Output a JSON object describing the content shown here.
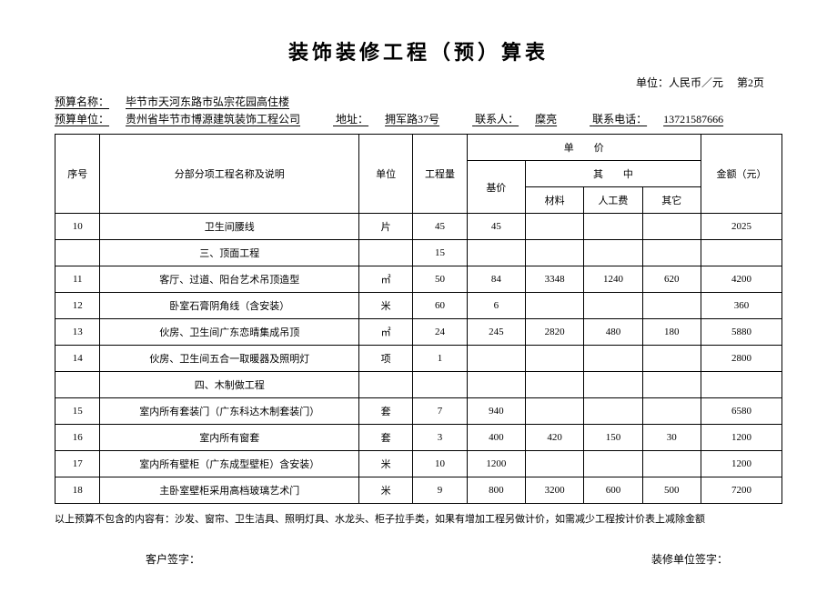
{
  "title": "装饰装修工程（预）算表",
  "unit_label": "单位：人民币／元",
  "page_label": "第2页",
  "budget_name_label": "预算名称：",
  "budget_name": "毕节市天河东路市弘宗花园高住楼",
  "budget_unit_label": "预算单位：",
  "budget_unit": "贵州省毕节市博源建筑装饰工程公司",
  "addr_label": "地址：",
  "addr": "拥军路37号",
  "contact_label": "联系人：",
  "contact": "糜亮",
  "phone_label": "联系电话：",
  "phone": "13721587666",
  "headers": {
    "seq": "序号",
    "name": "分部分项工程名称及说明",
    "unit": "单位",
    "qty": "工程量",
    "price": "单　　价",
    "base": "基价",
    "inner": "其　　中",
    "mat": "材料",
    "lab": "人工费",
    "oth": "其它",
    "amt": "金额（元）"
  },
  "rows": [
    {
      "seq": "10",
      "name": "卫生间腰线",
      "unit": "片",
      "qty": "45",
      "base": "45",
      "mat": "",
      "lab": "",
      "oth": "",
      "amt": "2025"
    },
    {
      "seq": "",
      "name": "三、顶面工程",
      "unit": "",
      "qty": "15",
      "base": "",
      "mat": "",
      "lab": "",
      "oth": "",
      "amt": ""
    },
    {
      "seq": "11",
      "name": "客厅、过道、阳台艺术吊顶造型",
      "unit": "㎡",
      "qty": "50",
      "base": "84",
      "mat": "3348",
      "lab": "1240",
      "oth": "620",
      "amt": "4200"
    },
    {
      "seq": "12",
      "name": "卧室石膏阴角线（含安装）",
      "unit": "米",
      "qty": "60",
      "base": "6",
      "mat": "",
      "lab": "",
      "oth": "",
      "amt": "360"
    },
    {
      "seq": "13",
      "name": "伙房、卫生间广东恋晴集成吊顶",
      "unit": "㎡",
      "qty": "24",
      "base": "245",
      "mat": "2820",
      "lab": "480",
      "oth": "180",
      "amt": "5880"
    },
    {
      "seq": "14",
      "name": "伙房、卫生间五合一取暖器及照明灯",
      "unit": "项",
      "qty": "1",
      "base": "",
      "mat": "",
      "lab": "",
      "oth": "",
      "amt": "2800"
    },
    {
      "seq": "",
      "name": "四、木制做工程",
      "unit": "",
      "qty": "",
      "base": "",
      "mat": "",
      "lab": "",
      "oth": "",
      "amt": ""
    },
    {
      "seq": "15",
      "name": "室内所有套装门（广东科达木制套装门）",
      "unit": "套",
      "qty": "7",
      "base": "940",
      "mat": "",
      "lab": "",
      "oth": "",
      "amt": "6580"
    },
    {
      "seq": "16",
      "name": "室内所有窗套",
      "unit": "套",
      "qty": "3",
      "base": "400",
      "mat": "420",
      "lab": "150",
      "oth": "30",
      "amt": "1200"
    },
    {
      "seq": "17",
      "name": "室内所有壁柜（广东成型壁柜）含安装）",
      "unit": "米",
      "qty": "10",
      "base": "1200",
      "mat": "",
      "lab": "",
      "oth": "",
      "amt": "1200"
    },
    {
      "seq": "18",
      "name": "主卧室壁柜采用高档玻璃艺术门",
      "unit": "米",
      "qty": "9",
      "base": "800",
      "mat": "3200",
      "lab": "600",
      "oth": "500",
      "amt": "7200"
    }
  ],
  "footnote": "以上预算不包含的内容有：沙发、窗帘、卫生洁具、照明灯具、水龙头、柜子拉手类，如果有增加工程另做计价，如需减少工程按计价表上减除金额",
  "sign_client": "客户签字：",
  "sign_company": "装修单位签字："
}
